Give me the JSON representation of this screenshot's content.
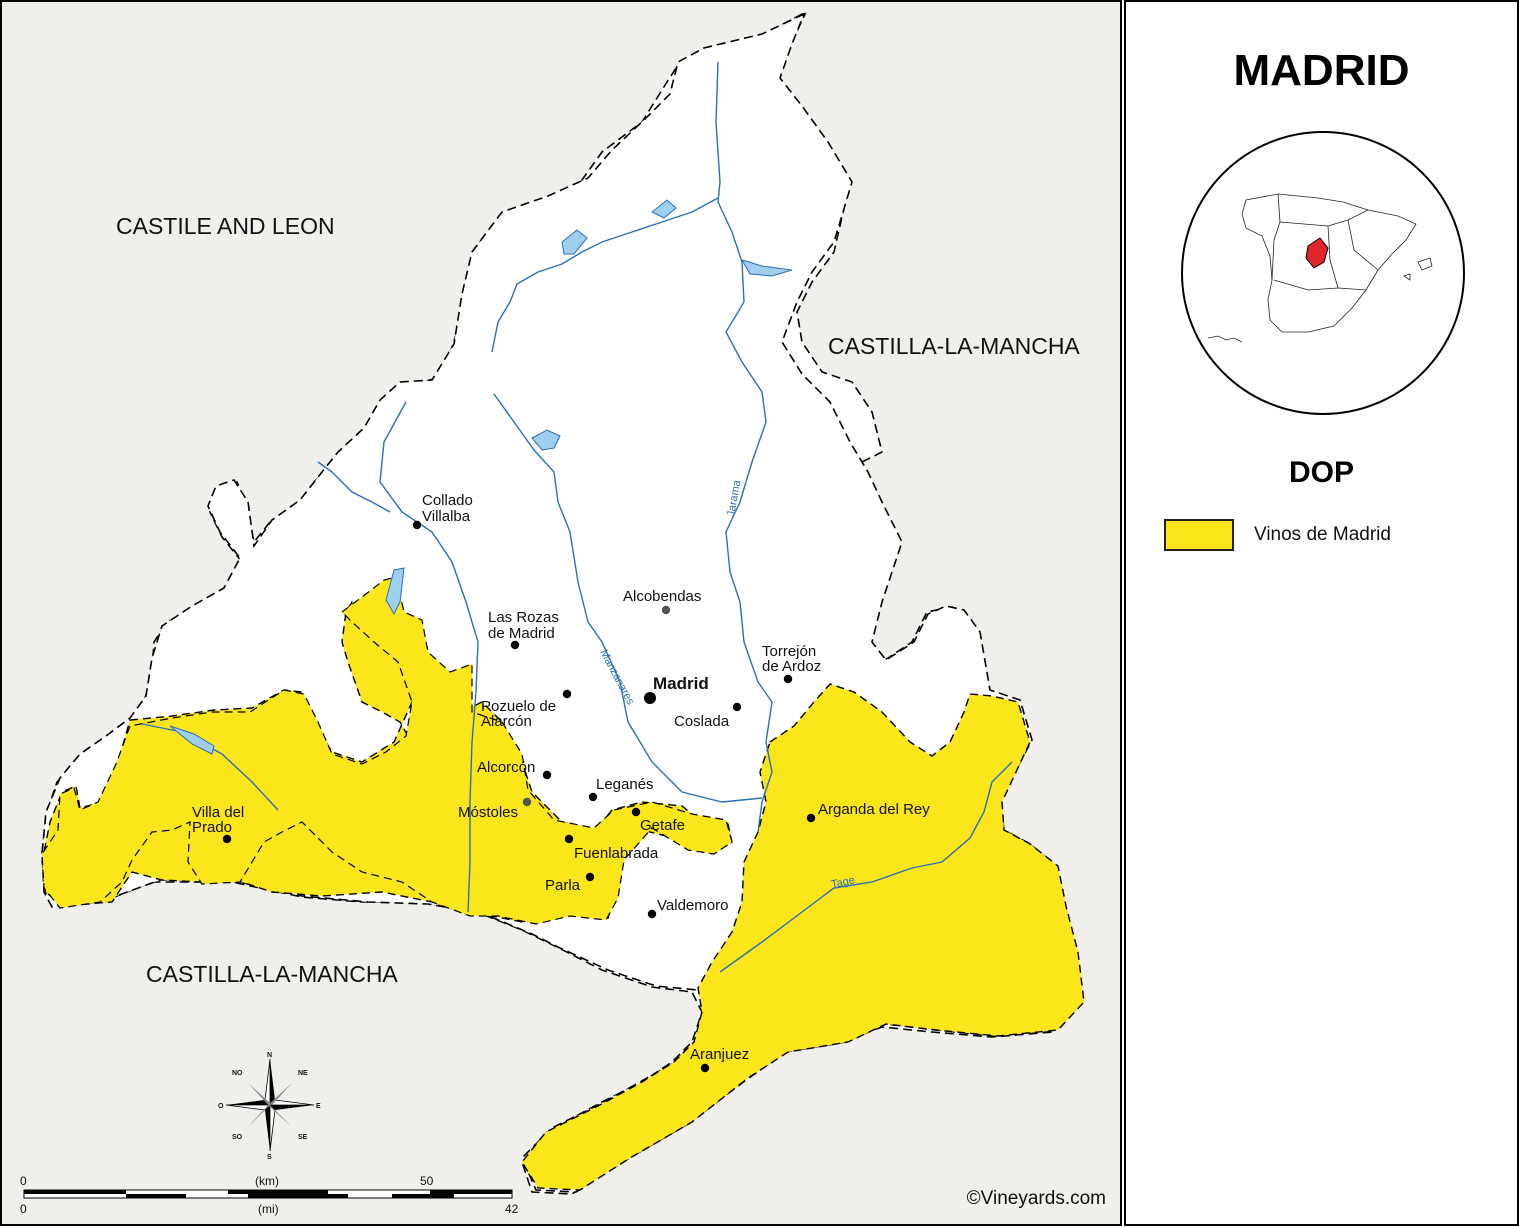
{
  "title": "MADRID",
  "legend": {
    "heading": "DOP",
    "items": [
      {
        "label": "Vinos de Madrid",
        "color": "#fbe61c"
      }
    ]
  },
  "inset_map": {
    "name": "Spain locator map",
    "highlight_color": "#e0262a"
  },
  "regions": {
    "castile_leon": "CASTILE AND LEON",
    "castilla_mancha_east": "CASTILLA-LA-MANCHA",
    "castilla_mancha_south": "CASTILLA-LA-MANCHA"
  },
  "cities": {
    "collado_l1": "Collado",
    "collado_l2": "Villalba",
    "alcobendas": "Alcobendas",
    "rozas_l1": "Las Rozas",
    "rozas_l2": "de Madrid",
    "torrejon_l1": "Torrejón",
    "torrejon_l2": "de Ardoz",
    "madrid": "Madrid",
    "pozuelo_l1": "Pozuelo de",
    "pozuelo_l2": "Alarcón",
    "coslada": "Coslada",
    "alcorcon": "Alcorcón",
    "leganes": "Leganés",
    "mostoles": "Móstoles",
    "getafe": "Getafe",
    "villa_prado_l1": "Villa del",
    "villa_prado_l2": "Prado",
    "arganda": "Arganda del Rey",
    "fuenlabrada": "Fuenlabrada",
    "parla": "Parla",
    "valdemoro": "Valdemoro",
    "aranjuez": "Aranjuez"
  },
  "rivers": {
    "manzanares": "Manzanares",
    "jarama": "Jarama",
    "tage": "Tage"
  },
  "compass": {
    "n": "N",
    "s": "S",
    "e": "E",
    "o": "O",
    "ne": "NE",
    "no": "NO",
    "se": "SE",
    "so": "SO"
  },
  "scale": {
    "km_zero": "0",
    "km_unit": "(km)",
    "km_max": "50",
    "mi_zero": "0",
    "mi_unit": "(mi)",
    "mi_max": "42"
  },
  "copyright": "©Vineyards.com",
  "colors": {
    "dop_yellow": "#fbe61c",
    "land": "#ffffff",
    "outside": "#f0efec",
    "river": "#2b6fb5"
  }
}
